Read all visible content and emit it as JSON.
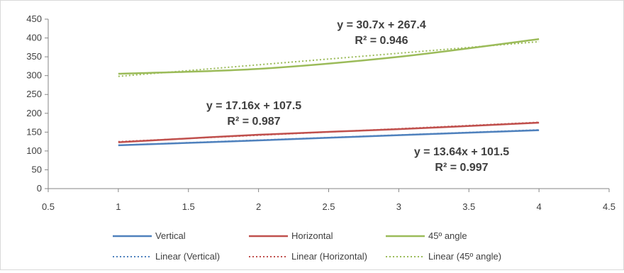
{
  "chart_data": {
    "type": "line",
    "title": "",
    "xlabel": "",
    "ylabel": "",
    "xlim": [
      0.5,
      4.5
    ],
    "ylim": [
      0,
      450
    ],
    "x_ticks": [
      0.5,
      1,
      1.5,
      2,
      2.5,
      3,
      3.5,
      4,
      4.5
    ],
    "y_ticks": [
      0,
      50,
      100,
      150,
      200,
      250,
      300,
      350,
      400,
      450
    ],
    "x_tick_labels": [
      "0.5",
      "1",
      "1.5",
      "2",
      "2.5",
      "3",
      "3.5",
      "4",
      "4.5"
    ],
    "y_tick_labels": [
      "0",
      "50",
      "100",
      "150",
      "200",
      "250",
      "300",
      "350",
      "400",
      "450"
    ],
    "grid": "none",
    "legend_position": "bottom",
    "series": [
      {
        "name": "Vertical",
        "color": "#4f81bd",
        "x": [
          1,
          2,
          3,
          4
        ],
        "y": [
          115,
          128,
          142,
          155
        ]
      },
      {
        "name": "Horizontal",
        "color": "#c0504d",
        "x": [
          1,
          2,
          3,
          4
        ],
        "y": [
          123,
          143,
          158,
          175
        ]
      },
      {
        "name": "45º angle",
        "color": "#9bbb59",
        "x": [
          1,
          2,
          3,
          4
        ],
        "y": [
          305,
          318,
          350,
          397
        ]
      }
    ],
    "trendlines": [
      {
        "name": "Linear (Vertical)",
        "color": "#4f81bd",
        "slope": 13.64,
        "intercept": 101.5,
        "equation": "y = 13.64x + 101.5",
        "r2": "R² = 0.997"
      },
      {
        "name": "Linear (Horizontal)",
        "color": "#c0504d",
        "slope": 17.16,
        "intercept": 107.5,
        "equation": "y = 17.16x + 107.5",
        "r2": "R² = 0.987"
      },
      {
        "name": "Linear (45º angle)",
        "color": "#9bbb59",
        "slope": 30.7,
        "intercept": 267.4,
        "equation": "y = 30.7x + 267.4",
        "r2": "R² = 0.946"
      }
    ]
  }
}
